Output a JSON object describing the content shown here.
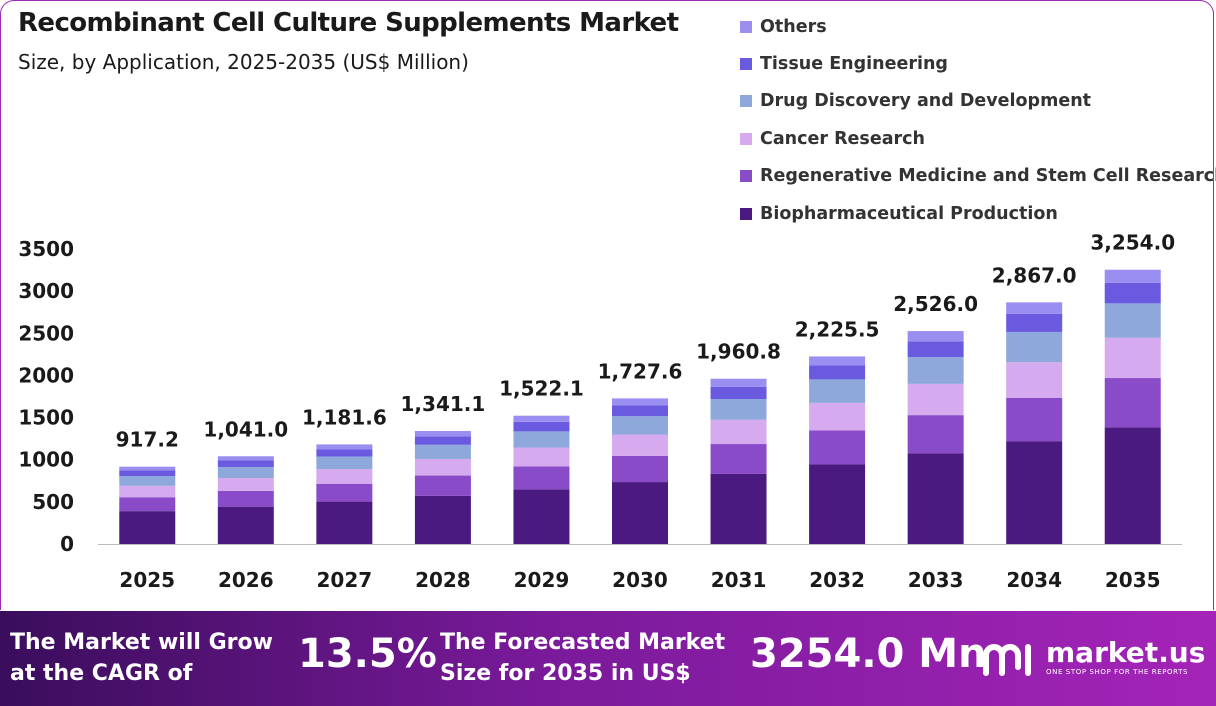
{
  "chart_data": {
    "type": "bar",
    "stacked": true,
    "title": "Recombinant Cell Culture Supplements Market",
    "subtitle": "Size, by Application, 2025-2035 (US$ Million)",
    "categories": [
      "2025",
      "2026",
      "2027",
      "2028",
      "2029",
      "2030",
      "2031",
      "2032",
      "2033",
      "2034",
      "2035"
    ],
    "totals": [
      917.2,
      1041.0,
      1181.6,
      1341.1,
      1522.1,
      1727.6,
      1960.8,
      2225.5,
      2526.0,
      2867.0,
      3254.0
    ],
    "total_labels": [
      "917.2",
      "1,041.0",
      "1,181.6",
      "1,341.1",
      "1,522.1",
      "1,727.6",
      "1,960.8",
      "2,225.5",
      "2,526.0",
      "2,867.0",
      "3,254.0"
    ],
    "ylim": [
      0,
      3500
    ],
    "yticks": [
      "0",
      "500",
      "1000",
      "1500",
      "2000",
      "2500",
      "3000",
      "3500"
    ],
    "legend_position": "top-right",
    "series": [
      {
        "name": "Biopharmaceutical Production",
        "color": "#4b1a80",
        "values": [
          390,
          443,
          503,
          571,
          648,
          735,
          834,
          947,
          1075,
          1220,
          1385
        ]
      },
      {
        "name": "Regenerative Medicine and Stem Cell Research",
        "color": "#8a4bc9",
        "values": [
          165,
          187,
          212,
          241,
          273,
          310,
          352,
          400,
          454,
          515,
          584
        ]
      },
      {
        "name": "Cancer Research",
        "color": "#d5aaee",
        "values": [
          135,
          153,
          174,
          197,
          224,
          254,
          288,
          327,
          371,
          421,
          478
        ]
      },
      {
        "name": "Drug Discovery and Development",
        "color": "#8ea8dc",
        "values": [
          115,
          131,
          148,
          168,
          191,
          217,
          246,
          279,
          317,
          360,
          408
        ]
      },
      {
        "name": "Tissue Engineering",
        "color": "#6a5ae0",
        "values": [
          68,
          77,
          88,
          100,
          113,
          128,
          146,
          166,
          188,
          214,
          243
        ]
      },
      {
        "name": "Others",
        "color": "#9a8ef0",
        "values": [
          44.2,
          50.0,
          56.6,
          64.1,
          73.1,
          83.6,
          94.8,
          106.5,
          121.0,
          137.0,
          156.0
        ]
      }
    ]
  },
  "footer": {
    "cagr_label": "The Market will Grow at the CAGR of",
    "cagr_value": "13.5%",
    "size_label": "The Forecasted Market Size for 2035 in US$",
    "size_value": "3254.0 Mn",
    "logo_name": "market.us",
    "logo_tagline": "ONE STOP SHOP FOR THE REPORTS"
  },
  "colors": {
    "footer_start": "#3a0d5c",
    "footer_end": "#a424b8",
    "border": "#9b2bb5"
  }
}
